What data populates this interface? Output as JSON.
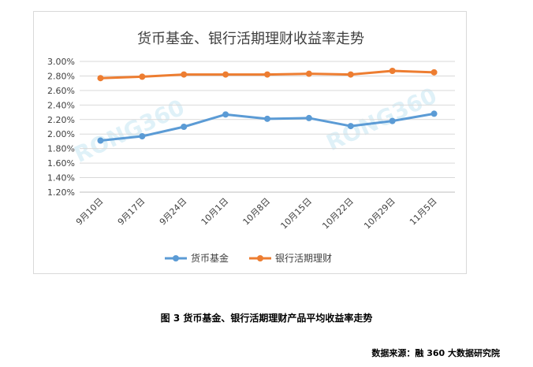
{
  "chart_data": {
    "type": "line",
    "title": "货币基金、银行活期理财收益率走势",
    "categories": [
      "9月10日",
      "9月17日",
      "9月24日",
      "10月1日",
      "10月8日",
      "10月15日",
      "10月22日",
      "10月29日",
      "11月5日"
    ],
    "y_ticks": [
      "1.20%",
      "1.40%",
      "1.60%",
      "1.80%",
      "2.00%",
      "2.20%",
      "2.40%",
      "2.60%",
      "2.80%",
      "3.00%"
    ],
    "ylim": [
      1.2,
      3.0
    ],
    "unit": "%",
    "grid": true,
    "legend_position": "bottom",
    "series": [
      {
        "name": "货币基金",
        "color": "#5b9bd5",
        "values": [
          1.91,
          1.97,
          2.1,
          2.27,
          2.21,
          2.22,
          2.11,
          2.18,
          2.28
        ]
      },
      {
        "name": "银行活期理财",
        "color": "#ed7d31",
        "values": [
          2.77,
          2.79,
          2.82,
          2.82,
          2.82,
          2.83,
          2.82,
          2.87,
          2.85
        ]
      }
    ],
    "watermark": "RONG360"
  },
  "caption": "图 3 货币基金、银行活期理财产品平均收益率走势",
  "source": "数据来源：融 360 大数据研究院"
}
